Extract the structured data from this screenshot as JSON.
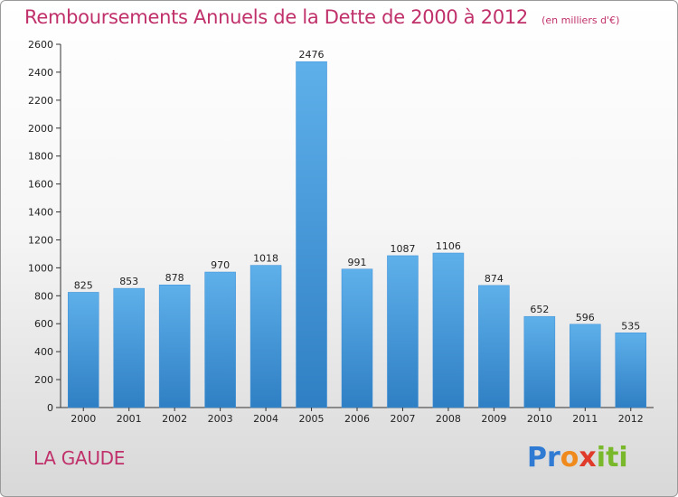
{
  "title": "Remboursements Annuels de la Dette de 2000 à 2012",
  "unit": "(en milliers d'€)",
  "commune": "LA GAUDE",
  "logo": {
    "text": "Proxiti",
    "letters": [
      "P",
      "r",
      "o",
      "x",
      "i",
      "t",
      "i"
    ],
    "colors": [
      "#2f7bd4",
      "#2f7bd4",
      "#f08a1c",
      "#e03a2a",
      "#79b82a",
      "#79b82a",
      "#79b82a"
    ]
  },
  "colors": {
    "bar_top": "#5eb0ea",
    "bar_bottom": "#2f7fc4",
    "title": "#c0306a"
  },
  "chart_data": {
    "type": "bar",
    "categories": [
      "2000",
      "2001",
      "2002",
      "2003",
      "2004",
      "2005",
      "2006",
      "2007",
      "2008",
      "2009",
      "2010",
      "2011",
      "2012"
    ],
    "values": [
      825,
      853,
      878,
      970,
      1018,
      2476,
      991,
      1087,
      1106,
      874,
      652,
      596,
      535
    ],
    "ylim": [
      0,
      2600
    ],
    "yticks": [
      0,
      200,
      400,
      600,
      800,
      1000,
      1200,
      1400,
      1600,
      1800,
      2000,
      2200,
      2400,
      2600
    ],
    "grid": false,
    "legend": "none"
  }
}
